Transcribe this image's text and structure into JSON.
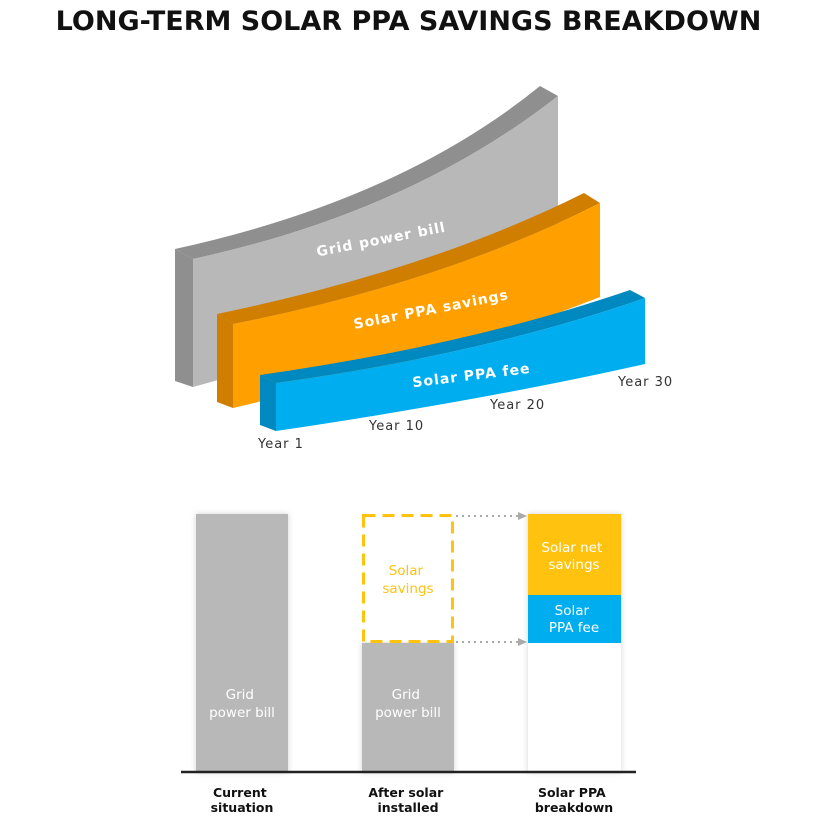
{
  "title": "LONG-TERM SOLAR PPA SAVINGS BREAKDOWN",
  "colors": {
    "grid_gray": "#b8b8b8",
    "grid_gray_dark": "#8f8f8f",
    "orange": "#ffa000",
    "orange_dark": "#d07e00",
    "blue": "#00aeef",
    "blue_dark": "#0088c0",
    "yellow": "#ffc20e"
  },
  "top_diagram": {
    "bands": [
      {
        "label": "Grid power bill"
      },
      {
        "label": "Solar PPA savings"
      },
      {
        "label": "Solar PPA fee"
      }
    ],
    "years": [
      "Year 1",
      "Year 10",
      "Year 20",
      "Year 30"
    ]
  },
  "bottom_diagram": {
    "columns": [
      {
        "category": [
          "Current",
          "situation"
        ],
        "segments": [
          {
            "text": [
              "Grid",
              "power bill"
            ]
          }
        ]
      },
      {
        "category": [
          "After solar",
          "installed"
        ],
        "segments": [
          {
            "text": [
              "Solar",
              "savings"
            ],
            "style": "dashed"
          },
          {
            "text": [
              "Grid",
              "power bill"
            ]
          }
        ]
      },
      {
        "category": [
          "Solar PPA",
          "breakdown"
        ],
        "segments": [
          {
            "text": [
              "Solar net",
              "savings"
            ]
          },
          {
            "text": [
              "Solar",
              "PPA fee"
            ]
          }
        ]
      }
    ]
  }
}
